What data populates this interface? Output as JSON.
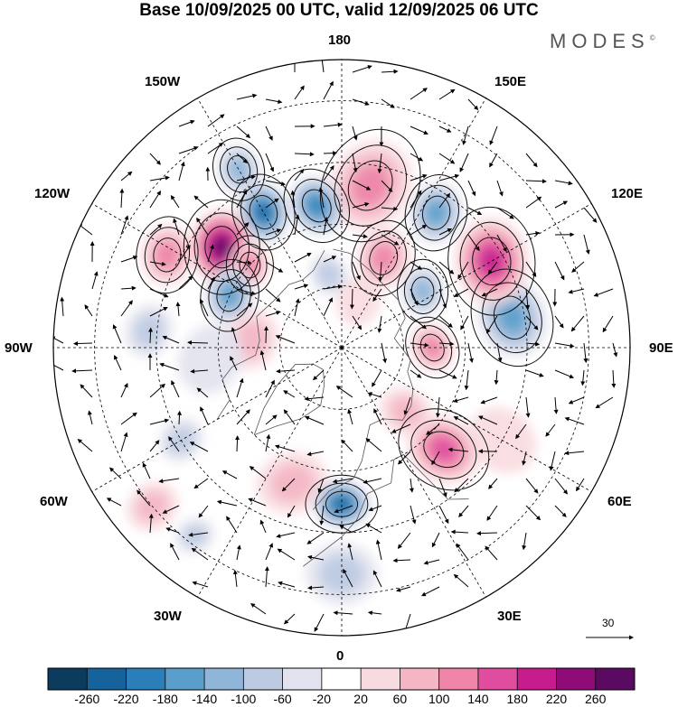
{
  "title": "Base 10/09/2025 00 UTC, valid 12/09/2025 06 UTC",
  "brand": "MODES",
  "brand_mark": "©",
  "lon_labels": {
    "n180": "180",
    "w150": "150W",
    "e150": "150E",
    "w120": "120W",
    "e120": "120E",
    "w90": "90W",
    "e90": "90E",
    "w60": "60W",
    "e60": "60E",
    "w30": "30W",
    "e30": "30E",
    "s0": "0"
  },
  "reference_vector": {
    "label": "30"
  },
  "colorbar": {
    "colors": [
      "#0b3c5d",
      "#16629a",
      "#2a7fba",
      "#5a9ecb",
      "#8fb5d8",
      "#bccbe2",
      "#e3e3ef",
      "#ffffff",
      "#f8dbe0",
      "#f4b6c4",
      "#ee84a8",
      "#e04d9f",
      "#c61c8e",
      "#8f0c78",
      "#5a0a61"
    ],
    "labels": [
      "-260",
      "-220",
      "-180",
      "-140",
      "-100",
      "-60",
      "-20",
      "20",
      "60",
      "100",
      "140",
      "180",
      "220",
      "260"
    ]
  },
  "anomalies": [
    {
      "lon": -150,
      "lat": 52,
      "v": -220,
      "r": 34
    },
    {
      "lon": -150,
      "lat": 40,
      "v": -120,
      "r": 28
    },
    {
      "lon": -130,
      "lat": 52,
      "v": 260,
      "r": 42
    },
    {
      "lon": -132,
      "lat": 60,
      "v": 120,
      "r": 26
    },
    {
      "lon": -118,
      "lat": 42,
      "v": 120,
      "r": 34
    },
    {
      "lon": -115,
      "lat": 60,
      "v": -160,
      "r": 32
    },
    {
      "lon": -95,
      "lat": 43,
      "v": -80,
      "r": 30
    },
    {
      "lon": -95,
      "lat": 68,
      "v": 80,
      "r": 34
    },
    {
      "lon": -85,
      "lat": 58,
      "v": -40,
      "r": 40
    },
    {
      "lon": -60,
      "lat": 45,
      "v": -60,
      "r": 26
    },
    {
      "lon": -50,
      "lat": 30,
      "v": 60,
      "r": 30
    },
    {
      "lon": -38,
      "lat": 32,
      "v": -60,
      "r": 22
    },
    {
      "lon": -20,
      "lat": 55,
      "v": 60,
      "r": 40
    },
    {
      "lon": 0,
      "lat": 52,
      "v": -220,
      "r": 32
    },
    {
      "lon": 0,
      "lat": 35,
      "v": -60,
      "r": 40
    },
    {
      "lon": 45,
      "lat": 55,
      "v": 140,
      "r": 42
    },
    {
      "lon": 45,
      "lat": 68,
      "v": 80,
      "r": 30
    },
    {
      "lon": 60,
      "lat": 45,
      "v": 40,
      "r": 40
    },
    {
      "lon": 100,
      "lat": 48,
      "v": -140,
      "r": 44
    },
    {
      "lon": 90,
      "lat": 68,
      "v": 100,
      "r": 28
    },
    {
      "lon": 120,
      "lat": 48,
      "v": 200,
      "r": 48
    },
    {
      "lon": 125,
      "lat": 66,
      "v": -100,
      "r": 28
    },
    {
      "lon": 145,
      "lat": 50,
      "v": -160,
      "r": 34
    },
    {
      "lon": 155,
      "lat": 66,
      "v": 120,
      "r": 34
    },
    {
      "lon": 170,
      "lat": 50,
      "v": 100,
      "r": 52
    },
    {
      "lon": -170,
      "lat": 55,
      "v": -180,
      "r": 34
    },
    {
      "lon": -170,
      "lat": 72,
      "v": -60,
      "r": 24
    },
    {
      "lon": 160,
      "lat": 78,
      "v": 40,
      "r": 28
    }
  ]
}
